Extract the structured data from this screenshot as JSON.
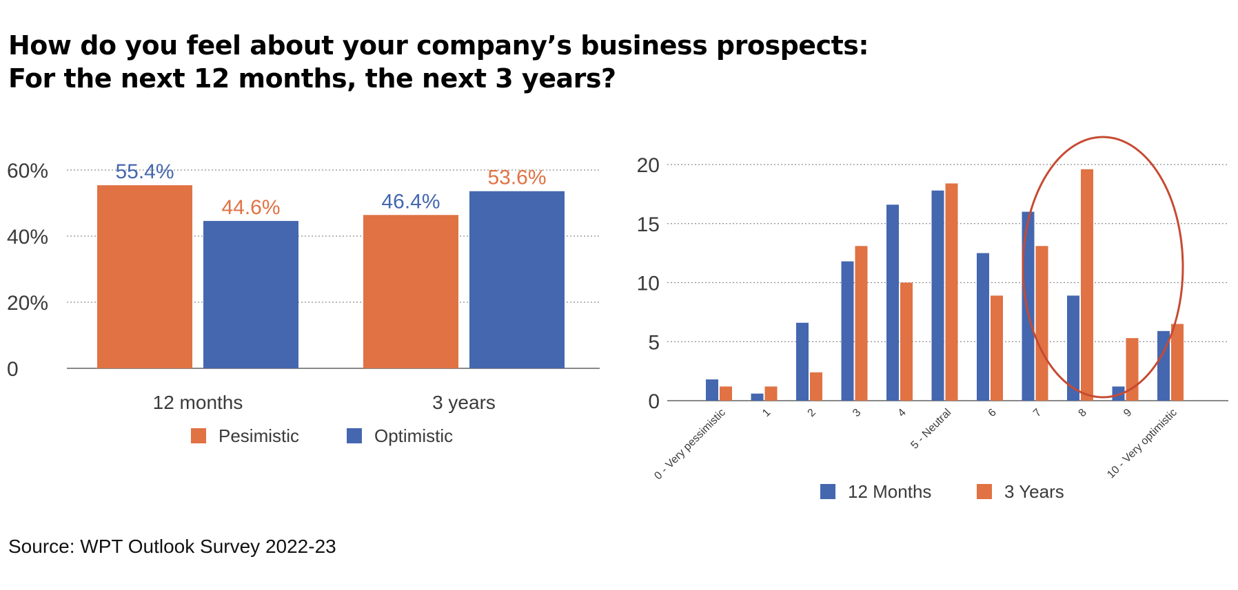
{
  "title": {
    "line1": "How do you feel about your company’s business prospects:",
    "line2": "For the next 12 months, the next 3 years?"
  },
  "source": "Source: WPT Outlook Survey 2022-23",
  "colors": {
    "orange": "#E07243",
    "blue": "#4467AF",
    "highlight": "#C64A32",
    "grid": "#8a8a8a",
    "axis": "#888888"
  },
  "chart_data": [
    {
      "type": "bar",
      "categories": [
        "12 months",
        "3 years"
      ],
      "series": [
        {
          "name": "Pesimistic",
          "color": "#E07243",
          "values": [
            55.4,
            46.4
          ]
        },
        {
          "name": "Optimistic",
          "color": "#4467AF",
          "values": [
            44.6,
            53.6
          ]
        }
      ],
      "data_labels": [
        [
          "55.4%",
          "46.4%"
        ],
        [
          "44.6%",
          "53.6%"
        ]
      ],
      "data_label_colors": [
        [
          "#4467AF",
          "#4467AF"
        ],
        [
          "#E07243",
          "#E07243"
        ]
      ],
      "y_ticks": [
        {
          "value": 0,
          "label": "0"
        },
        {
          "value": 20,
          "label": "20%"
        },
        {
          "value": 40,
          "label": "40%"
        },
        {
          "value": 60,
          "label": "60%"
        }
      ],
      "ylim": [
        0,
        60
      ],
      "grid": true,
      "legend": "bottom"
    },
    {
      "type": "bar",
      "categories": [
        "0 - Very pessimistic",
        "1",
        "2",
        "3",
        "4",
        "5 - Neutral",
        "6",
        "7",
        "8",
        "9",
        "10 - Very optimistic"
      ],
      "series": [
        {
          "name": "12 Months",
          "color": "#4467AF",
          "values": [
            1.8,
            0.6,
            6.6,
            11.8,
            16.6,
            17.8,
            12.5,
            16.0,
            8.9,
            1.2,
            5.9
          ]
        },
        {
          "name": "3 Years",
          "color": "#E07243",
          "values": [
            1.2,
            1.2,
            2.4,
            13.1,
            10.0,
            18.4,
            8.9,
            13.1,
            19.6,
            5.3,
            6.5
          ]
        }
      ],
      "y_ticks": [
        {
          "value": 0,
          "label": "0"
        },
        {
          "value": 5,
          "label": "5"
        },
        {
          "value": 10,
          "label": "10"
        },
        {
          "value": 15,
          "label": "15"
        },
        {
          "value": 20,
          "label": "20"
        }
      ],
      "ylim": [
        0,
        20
      ],
      "grid": true,
      "legend": "bottom",
      "annotation": "highlight ellipse around categories 7 to 9"
    }
  ]
}
